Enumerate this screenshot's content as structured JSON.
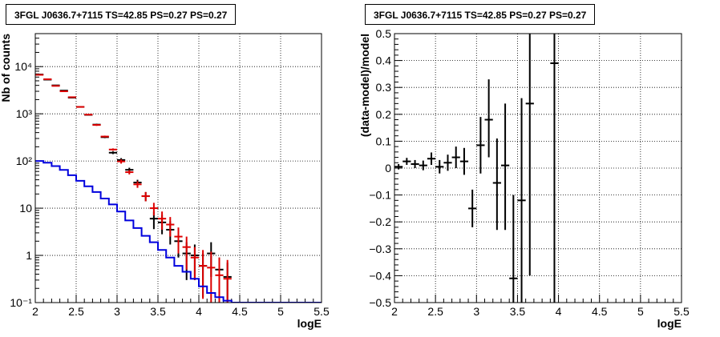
{
  "chart_data": [
    {
      "type": "scatter",
      "title": "3FGL J0636.7+7115 TS=42.85 PS=0.27 PS=0.27",
      "xlabel": "logE",
      "ylabel": "Nb of counts",
      "xlim": [
        2,
        5.5
      ],
      "ylim": [
        0.1,
        50000
      ],
      "yscale": "log",
      "grid": true,
      "x_ticks": [
        "2",
        "2.5",
        "3",
        "3.5",
        "4",
        "4.5",
        "5",
        "5.5"
      ],
      "y_ticks": [
        "10⁻¹",
        "1",
        "10",
        "10²",
        "10³",
        "10⁴"
      ],
      "series": [
        {
          "kind": "errorbars",
          "color": "#000000",
          "x": [
            2.05,
            2.15,
            2.25,
            2.35,
            2.45,
            2.55,
            2.65,
            2.75,
            2.85,
            2.95,
            3.05,
            3.15,
            3.25,
            3.35,
            3.45,
            3.55,
            3.65,
            3.75,
            3.85,
            3.95,
            4.05,
            4.15,
            4.25,
            4.35
          ],
          "y": [
            6800,
            5300,
            4000,
            3100,
            2200,
            1400,
            950,
            590,
            320,
            150,
            105,
            65,
            35,
            18,
            6,
            5,
            3.5,
            2,
            1.1,
            1,
            0.6,
            1.1,
            0.5,
            0.35
          ],
          "ylo": [
            6700,
            5200,
            3930,
            3040,
            2150,
            1360,
            920,
            565,
            305,
            140,
            95,
            58,
            30,
            14,
            3.6,
            2.8,
            1.7,
            0.9,
            0.3,
            0.3,
            0.13,
            0.35,
            0.11,
            0.1
          ],
          "yhi": [
            6900,
            5400,
            4070,
            3160,
            2250,
            1440,
            980,
            615,
            335,
            160,
            115,
            72,
            40,
            22,
            8.4,
            7.2,
            5.3,
            3.1,
            1.9,
            1.7,
            1.1,
            1.9,
            0.9,
            0.7
          ]
        },
        {
          "kind": "errorbars",
          "color": "#dd0000",
          "x": [
            2.05,
            2.15,
            2.25,
            2.35,
            2.45,
            2.55,
            2.65,
            2.75,
            2.85,
            2.95,
            3.05,
            3.15,
            3.25,
            3.35,
            3.45,
            3.55,
            3.65,
            3.75,
            3.85,
            3.95,
            4.05,
            4.15,
            4.25,
            4.35
          ],
          "y": [
            6700,
            5400,
            3900,
            3000,
            2250,
            1400,
            960,
            580,
            330,
            175,
            98,
            58,
            32,
            18,
            10,
            6,
            4.5,
            2.5,
            1.5,
            0.9,
            0.6,
            0.55,
            0.38,
            0.32
          ],
          "ylo": [
            6600,
            5300,
            3830,
            2940,
            2200,
            1360,
            930,
            555,
            315,
            165,
            88,
            52,
            27,
            14,
            7,
            3.5,
            2.5,
            1.1,
            0.5,
            0.3,
            0.12,
            0.1,
            0.1,
            0.1
          ],
          "yhi": [
            6800,
            5500,
            3970,
            3060,
            2300,
            1440,
            990,
            605,
            345,
            185,
            108,
            64,
            37,
            22,
            13,
            8.5,
            6.5,
            3.9,
            2.5,
            1.5,
            1.3,
            1.2,
            0.9,
            0.8
          ]
        },
        {
          "kind": "step",
          "color": "#0000dd",
          "edges": [
            2.0,
            2.1,
            2.2,
            2.3,
            2.4,
            2.5,
            2.6,
            2.7,
            2.8,
            2.9,
            3.0,
            3.1,
            3.2,
            3.3,
            3.4,
            3.5,
            3.6,
            3.7,
            3.8,
            3.9,
            4.0,
            4.1,
            4.2,
            4.3,
            4.4,
            5.5
          ],
          "values": [
            100,
            92,
            78,
            65,
            50,
            38,
            29,
            22,
            16,
            12,
            8.5,
            5.5,
            3.8,
            2.6,
            1.9,
            1.3,
            0.9,
            0.6,
            0.45,
            0.32,
            0.22,
            0.16,
            0.13,
            0.11,
            0.1
          ]
        }
      ]
    },
    {
      "type": "scatter",
      "title": "3FGL J0636.7+7115 TS=42.85 PS=0.27 PS=0.27",
      "xlabel": "logE",
      "ylabel": "(data-model)/model",
      "xlim": [
        2,
        5.5
      ],
      "ylim": [
        -0.5,
        0.5
      ],
      "grid": true,
      "x_ticks": [
        "2",
        "2.5",
        "3",
        "3.5",
        "4",
        "4.5",
        "5",
        "5.5"
      ],
      "y_ticks": [
        "−0.5",
        "−0.4",
        "−0.3",
        "−0.2",
        "−0.1",
        "0",
        "0.1",
        "0.2",
        "0.3",
        "0.4",
        "0.5"
      ],
      "series": [
        {
          "kind": "errorbars",
          "color": "#000000",
          "x": [
            2.05,
            2.15,
            2.25,
            2.35,
            2.45,
            2.55,
            2.65,
            2.75,
            2.85,
            2.95,
            3.05,
            3.15,
            3.25,
            3.35,
            3.45,
            3.55,
            3.65,
            3.95
          ],
          "y": [
            0.005,
            0.025,
            0.015,
            0.01,
            0.035,
            0.005,
            0.02,
            0.04,
            0.025,
            -0.15,
            0.085,
            0.18,
            -0.055,
            0.01,
            -0.41,
            -0.12,
            0.24,
            0.39
          ],
          "ylo": [
            -0.005,
            0.012,
            0.0,
            -0.008,
            0.012,
            -0.02,
            -0.01,
            0.0,
            -0.025,
            -0.22,
            -0.02,
            0.04,
            -0.23,
            -0.23,
            -0.5,
            -0.5,
            -0.4,
            -0.5
          ],
          "yhi": [
            0.015,
            0.038,
            0.03,
            0.028,
            0.058,
            0.03,
            0.05,
            0.08,
            0.075,
            -0.08,
            0.19,
            0.33,
            0.11,
            0.24,
            -0.1,
            0.26,
            0.5,
            0.5
          ]
        }
      ]
    }
  ]
}
